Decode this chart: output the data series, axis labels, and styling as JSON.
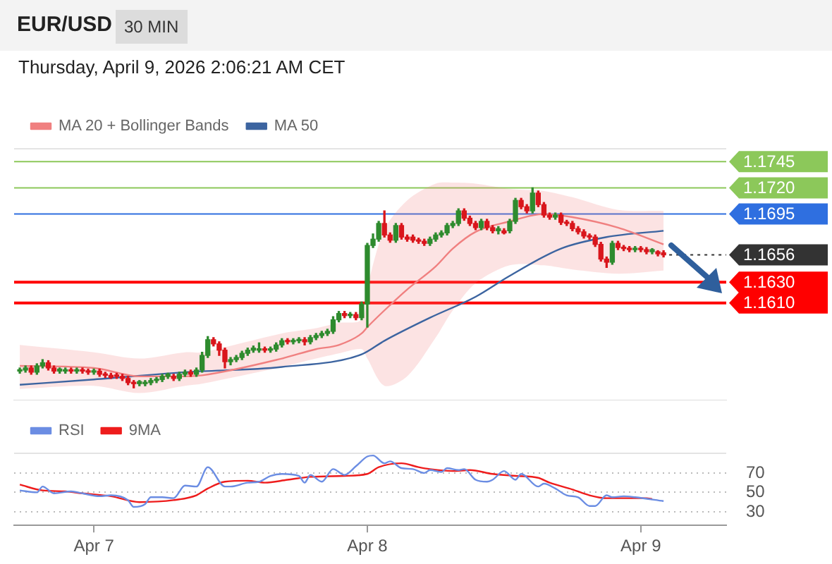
{
  "chart_data": [
    {
      "type": "candlestick",
      "title": "EUR/USD",
      "subtitle": "Thursday, April 9, 2026 2:06:21 AM CET",
      "annotations": [
        "30 MIN"
      ],
      "legend": "top left",
      "tick_labels": false,
      "xlim": [
        "2026-04-06T17:00",
        "2026-04-09T07:30"
      ],
      "ylim": [
        1.1517,
        1.1758
      ],
      "x": [
        "2026-04-06T17:30",
        "2026-04-06T18:00",
        "2026-04-06T18:30",
        "2026-04-06T19:00",
        "2026-04-06T19:30",
        "2026-04-06T20:00",
        "2026-04-06T20:30",
        "2026-04-06T21:00",
        "2026-04-06T21:30",
        "2026-04-06T22:00",
        "2026-04-06T22:30",
        "2026-04-06T23:00",
        "2026-04-06T23:30",
        "2026-04-07T00:00",
        "2026-04-07T00:30",
        "2026-04-07T01:00",
        "2026-04-07T01:30",
        "2026-04-07T02:00",
        "2026-04-07T02:30",
        "2026-04-07T03:00",
        "2026-04-07T03:30",
        "2026-04-07T04:00",
        "2026-04-07T04:30",
        "2026-04-07T05:00",
        "2026-04-07T05:30",
        "2026-04-07T06:00",
        "2026-04-07T06:30",
        "2026-04-07T07:00",
        "2026-04-07T07:30",
        "2026-04-07T08:00",
        "2026-04-07T08:30",
        "2026-04-07T09:00",
        "2026-04-07T09:30",
        "2026-04-07T10:00",
        "2026-04-07T10:30",
        "2026-04-07T11:00",
        "2026-04-07T11:30",
        "2026-04-07T12:00",
        "2026-04-07T12:30",
        "2026-04-07T13:00",
        "2026-04-07T13:30",
        "2026-04-07T14:00",
        "2026-04-07T14:30",
        "2026-04-07T15:00",
        "2026-04-07T15:30",
        "2026-04-07T16:00",
        "2026-04-07T16:30",
        "2026-04-07T17:00",
        "2026-04-07T17:30",
        "2026-04-07T18:00",
        "2026-04-07T18:30",
        "2026-04-07T19:00",
        "2026-04-07T19:30",
        "2026-04-07T20:00",
        "2026-04-07T20:30",
        "2026-04-07T21:00",
        "2026-04-07T21:30",
        "2026-04-07T22:00",
        "2026-04-07T22:30",
        "2026-04-07T23:00",
        "2026-04-07T23:30",
        "2026-04-08T00:00",
        "2026-04-08T00:30",
        "2026-04-08T01:00",
        "2026-04-08T01:30",
        "2026-04-08T02:00",
        "2026-04-08T02:30",
        "2026-04-08T03:00",
        "2026-04-08T03:30",
        "2026-04-08T04:00",
        "2026-04-08T04:30",
        "2026-04-08T05:00",
        "2026-04-08T05:30",
        "2026-04-08T06:00",
        "2026-04-08T06:30",
        "2026-04-08T07:00",
        "2026-04-08T07:30",
        "2026-04-08T08:00",
        "2026-04-08T08:30",
        "2026-04-08T09:00",
        "2026-04-08T09:30",
        "2026-04-08T10:00",
        "2026-04-08T10:30",
        "2026-04-08T11:00",
        "2026-04-08T11:30",
        "2026-04-08T12:00",
        "2026-04-08T12:30",
        "2026-04-08T13:00",
        "2026-04-08T13:30",
        "2026-04-08T14:00",
        "2026-04-08T14:30",
        "2026-04-08T15:00",
        "2026-04-08T15:30",
        "2026-04-08T16:00",
        "2026-04-08T16:30",
        "2026-04-08T17:00",
        "2026-04-08T17:30",
        "2026-04-08T18:00",
        "2026-04-08T18:30",
        "2026-04-08T19:00",
        "2026-04-08T19:30",
        "2026-04-08T20:00",
        "2026-04-08T20:30",
        "2026-04-08T21:00",
        "2026-04-08T21:30",
        "2026-04-08T22:00",
        "2026-04-08T22:30",
        "2026-04-08T23:00",
        "2026-04-08T23:30",
        "2026-04-09T00:00",
        "2026-04-09T00:30",
        "2026-04-09T01:00",
        "2026-04-09T01:30",
        "2026-04-09T02:00"
      ],
      "ohlc": [
        [
          1.1545,
          1.1548,
          1.1543,
          1.1546
        ],
        [
          1.1546,
          1.155,
          1.1544,
          1.1548
        ],
        [
          1.1548,
          1.155,
          1.1542,
          1.1544
        ],
        [
          1.1544,
          1.1552,
          1.1542,
          1.155
        ],
        [
          1.155,
          1.1556,
          1.1548,
          1.1553
        ],
        [
          1.1553,
          1.1555,
          1.1546,
          1.1548
        ],
        [
          1.1548,
          1.155,
          1.1543,
          1.1545
        ],
        [
          1.1545,
          1.1548,
          1.1543,
          1.1547
        ],
        [
          1.1545,
          1.1548,
          1.1543,
          1.1546
        ],
        [
          1.1546,
          1.1548,
          1.1543,
          1.1545
        ],
        [
          1.1545,
          1.1548,
          1.1543,
          1.1546
        ],
        [
          1.1546,
          1.1548,
          1.1543,
          1.1545
        ],
        [
          1.1545,
          1.1547,
          1.1542,
          1.1544
        ],
        [
          1.1544,
          1.1547,
          1.1542,
          1.1545
        ],
        [
          1.1545,
          1.1547,
          1.154,
          1.1542
        ],
        [
          1.1542,
          1.1544,
          1.1539,
          1.1541
        ],
        [
          1.1541,
          1.1543,
          1.1538,
          1.1539
        ],
        [
          1.1541,
          1.1543,
          1.1538,
          1.154
        ],
        [
          1.154,
          1.1542,
          1.1536,
          1.1538
        ],
        [
          1.1538,
          1.154,
          1.1532,
          1.1534
        ],
        [
          1.1534,
          1.1536,
          1.1529,
          1.1533
        ],
        [
          1.1533,
          1.1536,
          1.1531,
          1.1535
        ],
        [
          1.1533,
          1.1536,
          1.1531,
          1.1534
        ],
        [
          1.1534,
          1.1538,
          1.1532,
          1.1536
        ],
        [
          1.1536,
          1.1539,
          1.1534,
          1.1537
        ],
        [
          1.1537,
          1.1542,
          1.1535,
          1.154
        ],
        [
          1.154,
          1.1543,
          1.1538,
          1.1542
        ],
        [
          1.154,
          1.1542,
          1.1536,
          1.1538
        ],
        [
          1.1538,
          1.1544,
          1.1536,
          1.1542
        ],
        [
          1.1542,
          1.1546,
          1.154,
          1.1544
        ],
        [
          1.1544,
          1.1546,
          1.154,
          1.1542
        ],
        [
          1.1542,
          1.1548,
          1.154,
          1.1546
        ],
        [
          1.1546,
          1.1563,
          1.1544,
          1.156
        ],
        [
          1.156,
          1.1578,
          1.1558,
          1.1575
        ],
        [
          1.1575,
          1.1577,
          1.1569,
          1.1571
        ],
        [
          1.1571,
          1.1573,
          1.156,
          1.1565
        ],
        [
          1.1565,
          1.1567,
          1.1548,
          1.1554
        ],
        [
          1.1554,
          1.1558,
          1.1551,
          1.1556
        ],
        [
          1.1556,
          1.156,
          1.1554,
          1.1558
        ],
        [
          1.1558,
          1.1564,
          1.1556,
          1.1562
        ],
        [
          1.1562,
          1.1567,
          1.156,
          1.1565
        ],
        [
          1.1565,
          1.1569,
          1.1563,
          1.1567
        ],
        [
          1.1565,
          1.1572,
          1.1563,
          1.1566
        ],
        [
          1.1566,
          1.1568,
          1.1563,
          1.1565
        ],
        [
          1.1565,
          1.1568,
          1.1563,
          1.1566
        ],
        [
          1.1566,
          1.1572,
          1.1564,
          1.157
        ],
        [
          1.157,
          1.1576,
          1.1568,
          1.1574
        ],
        [
          1.1574,
          1.1576,
          1.1571,
          1.1573
        ],
        [
          1.1573,
          1.1576,
          1.1571,
          1.1574
        ],
        [
          1.1574,
          1.1577,
          1.1572,
          1.1575
        ],
        [
          1.1575,
          1.1577,
          1.157,
          1.1573
        ],
        [
          1.1573,
          1.1579,
          1.1571,
          1.1577
        ],
        [
          1.1577,
          1.1581,
          1.1575,
          1.1579
        ],
        [
          1.1579,
          1.1583,
          1.1577,
          1.1581
        ],
        [
          1.1581,
          1.1585,
          1.1579,
          1.1583
        ],
        [
          1.1583,
          1.1597,
          1.1581,
          1.1594
        ],
        [
          1.1594,
          1.1602,
          1.1592,
          1.16
        ],
        [
          1.16,
          1.1602,
          1.1596,
          1.1598
        ],
        [
          1.1598,
          1.1601,
          1.1596,
          1.1599
        ],
        [
          1.1599,
          1.1601,
          1.1594,
          1.1596
        ],
        [
          1.1596,
          1.1611,
          1.1594,
          1.1609
        ],
        [
          1.1609,
          1.1667,
          1.1587,
          1.1665
        ],
        [
          1.1665,
          1.1676,
          1.1663,
          1.1671
        ],
        [
          1.1671,
          1.1688,
          1.1669,
          1.1686
        ],
        [
          1.1686,
          1.1698,
          1.1673,
          1.1675
        ],
        [
          1.1675,
          1.1677,
          1.1668,
          1.167
        ],
        [
          1.167,
          1.1686,
          1.1668,
          1.1684
        ],
        [
          1.1684,
          1.1686,
          1.1671,
          1.1673
        ],
        [
          1.1673,
          1.1675,
          1.1669,
          1.1671
        ],
        [
          1.1673,
          1.1675,
          1.1668,
          1.167
        ],
        [
          1.167,
          1.1672,
          1.1667,
          1.1669
        ],
        [
          1.1669,
          1.1671,
          1.1665,
          1.1667
        ],
        [
          1.1667,
          1.1673,
          1.1665,
          1.1671
        ],
        [
          1.1671,
          1.1677,
          1.1669,
          1.1675
        ],
        [
          1.1675,
          1.1679,
          1.1673,
          1.1677
        ],
        [
          1.1677,
          1.1686,
          1.1675,
          1.1684
        ],
        [
          1.1684,
          1.1688,
          1.1682,
          1.1686
        ],
        [
          1.1686,
          1.17,
          1.1684,
          1.1698
        ],
        [
          1.1698,
          1.17,
          1.1689,
          1.1691
        ],
        [
          1.1691,
          1.1693,
          1.1684,
          1.1686
        ],
        [
          1.1686,
          1.1688,
          1.168,
          1.1682
        ],
        [
          1.1682,
          1.169,
          1.168,
          1.1688
        ],
        [
          1.1688,
          1.169,
          1.168,
          1.1682
        ],
        [
          1.1682,
          1.1684,
          1.1677,
          1.1679
        ],
        [
          1.1679,
          1.1683,
          1.1676,
          1.1681
        ],
        [
          1.1679,
          1.1681,
          1.1676,
          1.1677
        ],
        [
          1.1679,
          1.169,
          1.1677,
          1.1688
        ],
        [
          1.1688,
          1.171,
          1.1686,
          1.1708
        ],
        [
          1.1708,
          1.171,
          1.17,
          1.1702
        ],
        [
          1.1702,
          1.1704,
          1.1696,
          1.1698
        ],
        [
          1.1698,
          1.172,
          1.1696,
          1.1715
        ],
        [
          1.1715,
          1.1717,
          1.1702,
          1.1704
        ],
        [
          1.1704,
          1.1706,
          1.1692,
          1.1694
        ],
        [
          1.1694,
          1.1696,
          1.169,
          1.1692
        ],
        [
          1.1692,
          1.1696,
          1.169,
          1.1694
        ],
        [
          1.1694,
          1.1696,
          1.1685,
          1.1687
        ],
        [
          1.1687,
          1.1689,
          1.1684,
          1.1686
        ],
        [
          1.1686,
          1.1688,
          1.1679,
          1.1681
        ],
        [
          1.1681,
          1.1683,
          1.1676,
          1.1678
        ],
        [
          1.1678,
          1.168,
          1.1672,
          1.1674
        ],
        [
          1.1674,
          1.1676,
          1.1671,
          1.1673
        ],
        [
          1.1673,
          1.1675,
          1.1664,
          1.1666
        ],
        [
          1.1666,
          1.1668,
          1.165,
          1.1652
        ],
        [
          1.1652,
          1.1654,
          1.1644,
          1.1649
        ],
        [
          1.1649,
          1.1669,
          1.1647,
          1.1667
        ],
        [
          1.1667,
          1.1669,
          1.1661,
          1.1663
        ],
        [
          1.1663,
          1.1665,
          1.166,
          1.1662
        ],
        [
          1.1662,
          1.1664,
          1.1659,
          1.1661
        ],
        [
          1.1661,
          1.1664,
          1.1659,
          1.1662
        ],
        [
          1.1662,
          1.1664,
          1.1659,
          1.1661
        ],
        [
          1.1661,
          1.1663,
          1.1657,
          1.1659
        ],
        [
          1.1659,
          1.1662,
          1.1657,
          1.1661
        ],
        [
          1.1659,
          1.166,
          1.1655,
          1.1657
        ],
        [
          1.1658,
          1.166,
          1.1654,
          1.1656
        ]
      ],
      "series": [
        {
          "type": "line",
          "name": "MA 20 + Bollinger Bands",
          "color": "#f08080",
          "x": [
            "2026-04-06T17:30",
            "2026-04-07T00:00",
            "2026-04-07T04:00",
            "2026-04-07T08:00",
            "2026-04-07T09:30",
            "2026-04-07T16:30",
            "2026-04-07T19:30",
            "2026-04-07T21:30",
            "2026-04-07T23:30",
            "2026-04-08T00:00",
            "2026-04-08T01:30",
            "2026-04-08T03:30",
            "2026-04-08T06:00",
            "2026-04-08T07:30",
            "2026-04-08T09:30",
            "2026-04-08T12:30",
            "2026-04-08T15:30",
            "2026-04-08T18:00",
            "2026-04-08T22:00",
            "2026-04-09T02:00"
          ],
          "values": [
            1.155,
            1.1548,
            1.154,
            1.154,
            1.1541,
            1.1557,
            1.1566,
            1.157,
            1.1581,
            1.1587,
            1.1603,
            1.1623,
            1.1645,
            1.1662,
            1.1678,
            1.1688,
            1.1695,
            1.1692,
            1.1682,
            1.1666
          ],
          "upper": [
            1.157,
            1.1563,
            1.1557,
            1.1563,
            1.1563,
            1.1581,
            1.1586,
            1.1591,
            1.1594,
            1.1625,
            1.168,
            1.1708,
            1.1724,
            1.1725,
            1.1724,
            1.1719,
            1.1717,
            1.1711,
            1.1699,
            1.1698
          ],
          "lower": [
            1.1528,
            1.1531,
            1.1524,
            1.1531,
            1.1533,
            1.1549,
            1.1557,
            1.1562,
            1.1566,
            1.1557,
            1.1531,
            1.154,
            1.1577,
            1.1603,
            1.1629,
            1.1646,
            1.1646,
            1.1642,
            1.1638,
            1.1641
          ]
        },
        {
          "type": "line",
          "name": "MA 50",
          "color": "#3c64a0",
          "x": [
            "2026-04-06T17:30",
            "2026-04-07T00:00",
            "2026-04-07T08:00",
            "2026-04-07T16:30",
            "2026-04-07T23:30",
            "2026-04-08T01:30",
            "2026-04-08T05:30",
            "2026-04-08T09:30",
            "2026-04-08T12:30",
            "2026-04-08T17:00",
            "2026-04-08T21:00",
            "2026-04-09T02:00"
          ],
          "values": [
            1.1532,
            1.1537,
            1.1544,
            1.1549,
            1.1561,
            1.1574,
            1.1596,
            1.1616,
            1.1636,
            1.1662,
            1.1673,
            1.1679
          ]
        }
      ],
      "ref_lines": [
        {
          "axis": "y",
          "value": 1.1745,
          "label": "1.1745",
          "color": "#8cc85a"
        },
        {
          "axis": "y",
          "value": 1.172,
          "label": "1.1720",
          "color": "#8cc85a"
        },
        {
          "axis": "y",
          "value": 1.1695,
          "label": "1.1695",
          "color": "#2f6fe0"
        },
        {
          "axis": "y",
          "value": 1.1656,
          "label": "1.1656",
          "color": "#333333",
          "line_style": "dotted"
        },
        {
          "axis": "y",
          "value": 1.163,
          "label": "1.1630",
          "color": "#ff0000"
        },
        {
          "axis": "y",
          "value": 1.161,
          "label": "1.1610",
          "color": "#ff0000"
        }
      ]
    },
    {
      "type": "line",
      "legend": "top left",
      "grid": "y",
      "xlim": [
        "2026-04-06T17:00",
        "2026-04-09T07:30"
      ],
      "ylim": [
        16,
        91
      ],
      "yticks": [
        30,
        50,
        70
      ],
      "xticks": [
        {
          "value": "2026-04-07",
          "label": "Apr 7"
        },
        {
          "value": "2026-04-08",
          "label": "Apr 8"
        },
        {
          "value": "2026-04-09",
          "label": "Apr 9"
        }
      ],
      "series": [
        {
          "name": "RSI",
          "color": "#6b8de3",
          "x": [
            "2026-04-06T17:30",
            "2026-04-06T19:00",
            "2026-04-06T19:30",
            "2026-04-06T20:30",
            "2026-04-06T22:00",
            "2026-04-06T23:00",
            "2026-04-07T00:30",
            "2026-04-07T01:30",
            "2026-04-07T03:00",
            "2026-04-07T03:30",
            "2026-04-07T04:30",
            "2026-04-07T05:00",
            "2026-04-07T06:00",
            "2026-04-07T07:00",
            "2026-04-07T08:00",
            "2026-04-07T09:00",
            "2026-04-07T10:00",
            "2026-04-07T11:30",
            "2026-04-07T12:00",
            "2026-04-07T13:30",
            "2026-04-07T14:30",
            "2026-04-07T15:30",
            "2026-04-07T16:30",
            "2026-04-07T18:00",
            "2026-04-07T18:30",
            "2026-04-07T19:00",
            "2026-04-07T20:00",
            "2026-04-07T21:00",
            "2026-04-07T22:00",
            "2026-04-07T23:00",
            "2026-04-08T00:00",
            "2026-04-08T00:30",
            "2026-04-08T01:30",
            "2026-04-08T02:00",
            "2026-04-08T03:00",
            "2026-04-08T04:00",
            "2026-04-08T05:00",
            "2026-04-08T05:30",
            "2026-04-08T06:30",
            "2026-04-08T07:00",
            "2026-04-08T08:00",
            "2026-04-08T08:30",
            "2026-04-08T09:30",
            "2026-04-08T10:30",
            "2026-04-08T11:00",
            "2026-04-08T12:00",
            "2026-04-08T13:00",
            "2026-04-08T13:30",
            "2026-04-08T15:00",
            "2026-04-08T15:30",
            "2026-04-08T16:30",
            "2026-04-08T17:30",
            "2026-04-08T18:30",
            "2026-04-08T19:30",
            "2026-04-08T20:00",
            "2026-04-08T21:00",
            "2026-04-08T21:30",
            "2026-04-08T22:30",
            "2026-04-08T23:30",
            "2026-04-09T02:00"
          ],
          "values": [
            52,
            50,
            56,
            49,
            51,
            49,
            46,
            47,
            42,
            35,
            38,
            45,
            45,
            44,
            57,
            56,
            76,
            56,
            56,
            60,
            61,
            67,
            69,
            67,
            60,
            68,
            61,
            74,
            68,
            77,
            87,
            88,
            80,
            82,
            75,
            74,
            70,
            73,
            71,
            75,
            73,
            74,
            63,
            61,
            63,
            72,
            63,
            69,
            56,
            59,
            54,
            47,
            45,
            36,
            36,
            47,
            45,
            46,
            45,
            41
          ]
        },
        {
          "name": "9MA",
          "color": "#ee1c1c",
          "x": [
            "2026-04-06T17:30",
            "2026-04-06T19:30",
            "2026-04-06T21:30",
            "2026-04-06T23:00",
            "2026-04-07T01:30",
            "2026-04-07T04:00",
            "2026-04-07T07:00",
            "2026-04-07T09:00",
            "2026-04-07T10:00",
            "2026-04-07T11:30",
            "2026-04-07T13:30",
            "2026-04-07T15:00",
            "2026-04-07T17:00",
            "2026-04-07T19:00",
            "2026-04-07T22:00",
            "2026-04-08T00:00",
            "2026-04-08T01:00",
            "2026-04-08T03:00",
            "2026-04-08T04:30",
            "2026-04-08T05:30",
            "2026-04-08T07:30",
            "2026-04-08T09:00",
            "2026-04-08T11:00",
            "2026-04-08T13:00",
            "2026-04-08T15:00",
            "2026-04-08T16:00",
            "2026-04-08T18:00",
            "2026-04-08T19:30",
            "2026-04-08T21:00",
            "2026-04-08T22:30",
            "2026-04-09T00:30",
            "2026-04-09T01:00"
          ],
          "values": [
            58,
            52,
            51,
            49,
            46,
            40,
            42,
            47,
            54,
            61,
            62,
            60,
            63,
            66,
            67,
            69,
            76,
            80,
            76,
            74,
            72,
            73,
            69,
            67,
            65,
            60,
            53,
            47,
            44,
            44,
            44,
            43
          ]
        }
      ]
    }
  ]
}
